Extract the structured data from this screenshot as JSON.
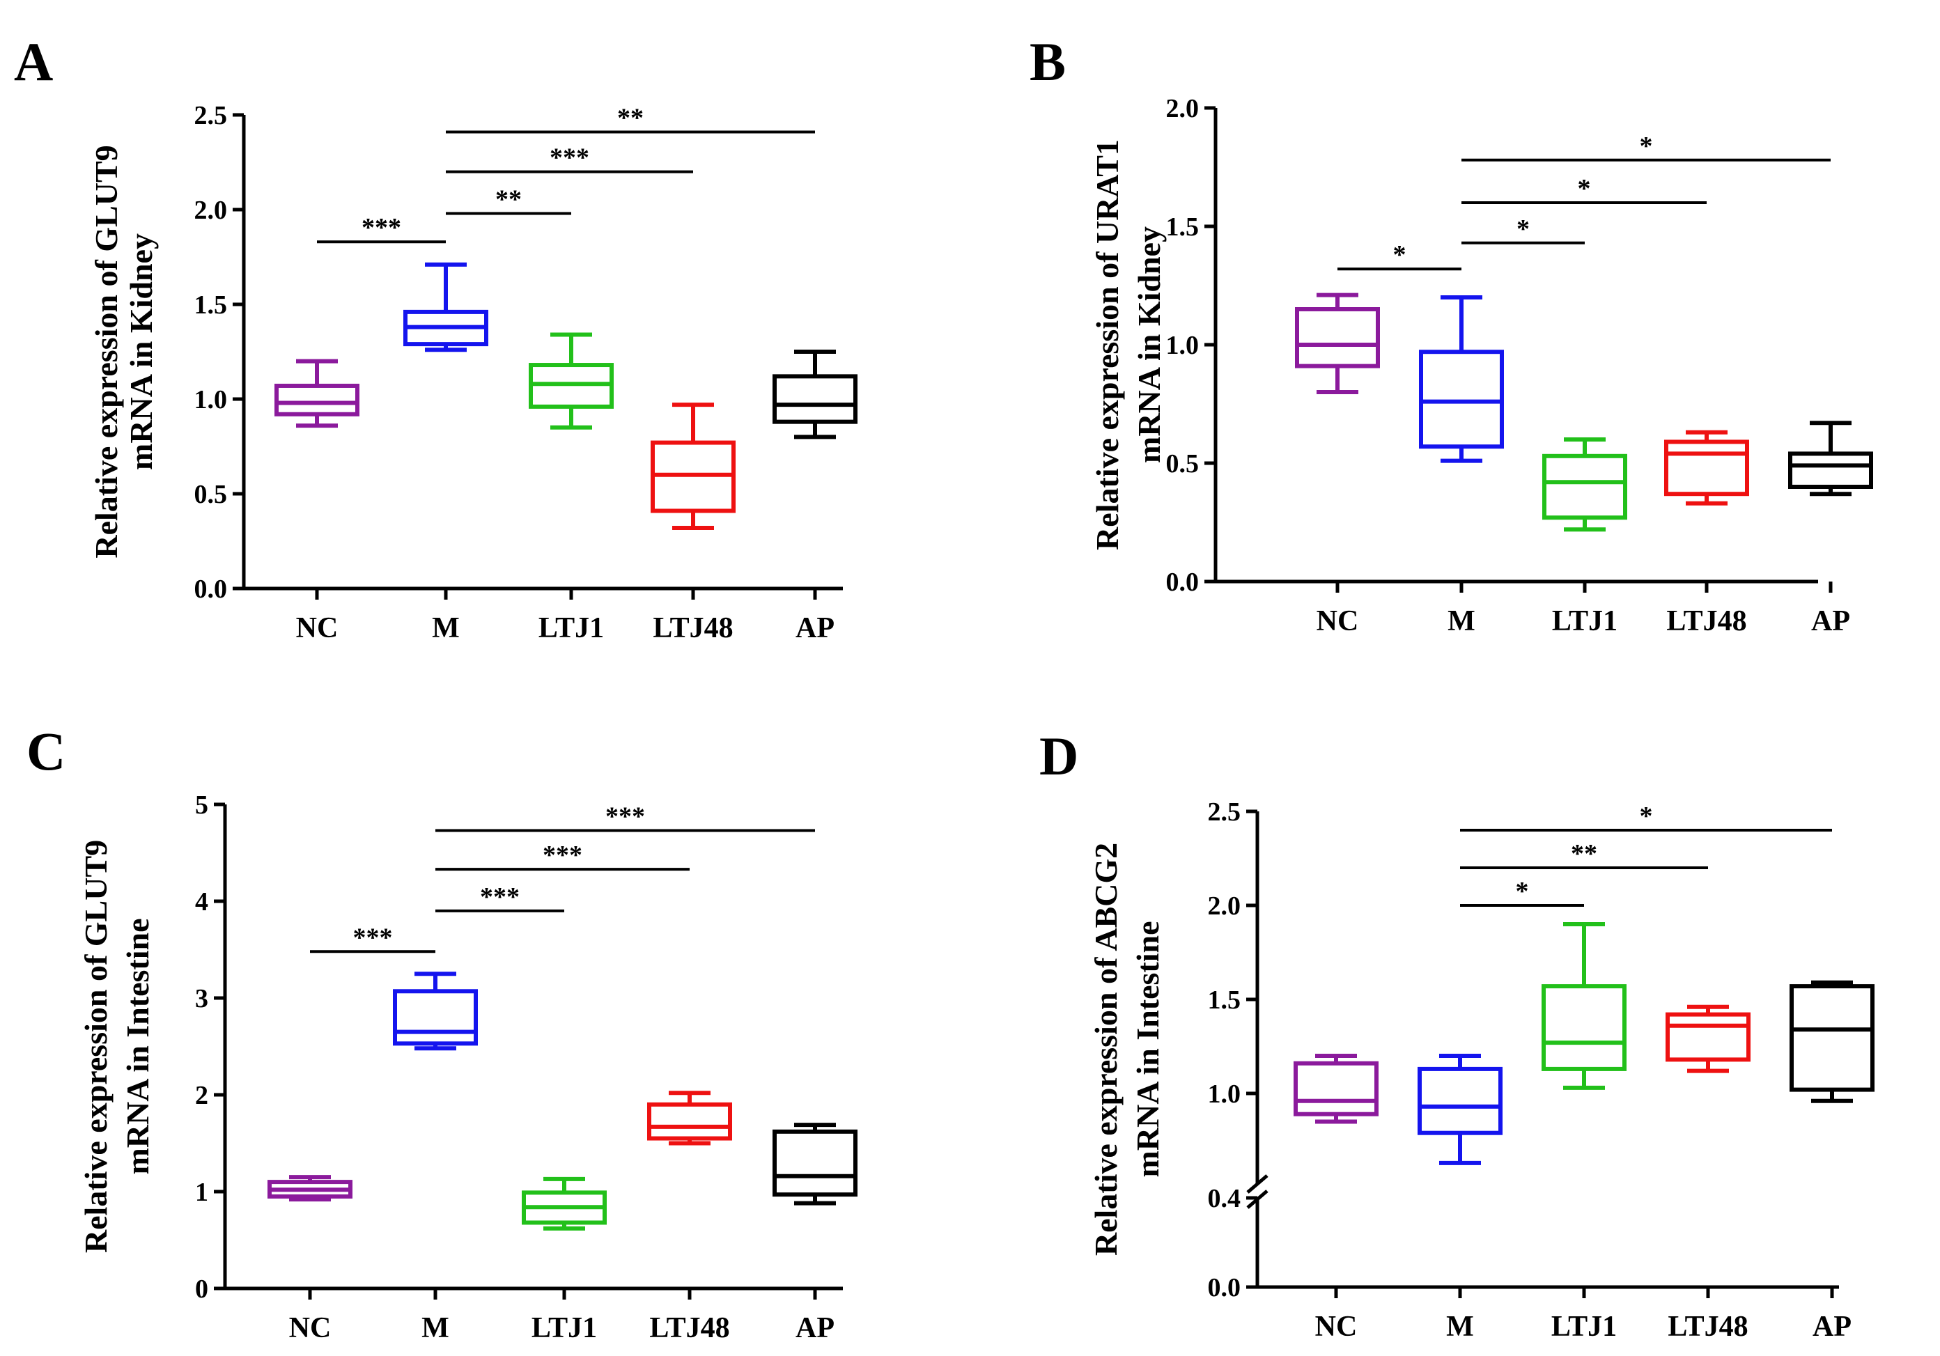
{
  "chart_data": [
    {
      "id": "A",
      "type": "box",
      "panel_label": "A",
      "ylabel_line1": "Relative expression of  GLUT9",
      "ylabel_line2": "mRNA in Kidney",
      "ylim": [
        0,
        2.5
      ],
      "yticks": [
        0,
        0.5,
        1.0,
        1.5,
        2.0,
        2.5
      ],
      "ytick_labels": [
        "0.0",
        "0.5",
        "1.0",
        "1.5",
        "2.0",
        "2.5"
      ],
      "categories": [
        "NC",
        "M",
        "LTJ1",
        "LTJ48",
        "AP"
      ],
      "boxes": [
        {
          "min": 0.86,
          "q1": 0.92,
          "median": 0.98,
          "q3": 1.07,
          "max": 1.2,
          "color": "#8b1a9c"
        },
        {
          "min": 1.26,
          "q1": 1.29,
          "median": 1.38,
          "q3": 1.46,
          "max": 1.71,
          "color": "#1414ee"
        },
        {
          "min": 0.85,
          "q1": 0.96,
          "median": 1.08,
          "q3": 1.18,
          "max": 1.34,
          "color": "#22c01a"
        },
        {
          "min": 0.32,
          "q1": 0.41,
          "median": 0.6,
          "q3": 0.77,
          "max": 0.97,
          "color": "#ee1111"
        },
        {
          "min": 0.8,
          "q1": 0.88,
          "median": 0.97,
          "q3": 1.12,
          "max": 1.25,
          "color": "#000000"
        }
      ],
      "significance": [
        {
          "from": 0,
          "to": 1,
          "label": "***",
          "y": 1.83
        },
        {
          "from": 1,
          "to": 2,
          "label": "**",
          "y": 1.98
        },
        {
          "from": 1,
          "to": 3,
          "label": "***",
          "y": 2.2
        },
        {
          "from": 1,
          "to": 4,
          "label": "**",
          "y": 2.41
        }
      ]
    },
    {
      "id": "B",
      "type": "box",
      "panel_label": "B",
      "ylabel_line1": "Relative expression of  URAT1",
      "ylabel_line2": "mRNA in Kidney",
      "ylim": [
        0,
        2.0
      ],
      "yticks": [
        0,
        0.5,
        1.0,
        1.5,
        2.0
      ],
      "ytick_labels": [
        "0.0",
        "0.5",
        "1.0",
        "1.5",
        "2.0"
      ],
      "categories": [
        "NC",
        "M",
        "LTJ1",
        "LTJ48",
        "AP"
      ],
      "boxes": [
        {
          "min": 0.8,
          "q1": 0.91,
          "median": 1.0,
          "q3": 1.15,
          "max": 1.21,
          "color": "#8b1a9c"
        },
        {
          "min": 0.51,
          "q1": 0.57,
          "median": 0.76,
          "q3": 0.97,
          "max": 1.2,
          "color": "#1414ee"
        },
        {
          "min": 0.22,
          "q1": 0.27,
          "median": 0.42,
          "q3": 0.53,
          "max": 0.6,
          "color": "#22c01a"
        },
        {
          "min": 0.33,
          "q1": 0.37,
          "median": 0.54,
          "q3": 0.59,
          "max": 0.63,
          "color": "#ee1111"
        },
        {
          "min": 0.37,
          "q1": 0.4,
          "median": 0.49,
          "q3": 0.54,
          "max": 0.67,
          "color": "#000000"
        }
      ],
      "significance": [
        {
          "from": 0,
          "to": 1,
          "label": "*",
          "y": 1.32
        },
        {
          "from": 1,
          "to": 2,
          "label": "*",
          "y": 1.43
        },
        {
          "from": 1,
          "to": 3,
          "label": "*",
          "y": 1.6
        },
        {
          "from": 1,
          "to": 4,
          "label": "*",
          "y": 1.78
        }
      ]
    },
    {
      "id": "C",
      "type": "box",
      "panel_label": "C",
      "ylabel_line1": "Relative expression of  GLUT9",
      "ylabel_line2": "mRNA in  Intestine",
      "ylim": [
        0,
        5
      ],
      "yticks": [
        0,
        1,
        2,
        3,
        4,
        5
      ],
      "ytick_labels": [
        "0",
        "1",
        "2",
        "3",
        "4",
        "5"
      ],
      "categories": [
        "NC",
        "M",
        "LTJ1",
        "LTJ48",
        "AP"
      ],
      "boxes": [
        {
          "min": 0.92,
          "q1": 0.95,
          "median": 1.02,
          "q3": 1.1,
          "max": 1.15,
          "color": "#8b1a9c"
        },
        {
          "min": 2.48,
          "q1": 2.53,
          "median": 2.65,
          "q3": 3.07,
          "max": 3.25,
          "color": "#1414ee"
        },
        {
          "min": 0.62,
          "q1": 0.68,
          "median": 0.84,
          "q3": 0.99,
          "max": 1.13,
          "color": "#22c01a"
        },
        {
          "min": 1.5,
          "q1": 1.55,
          "median": 1.67,
          "q3": 1.9,
          "max": 2.02,
          "color": "#ee1111"
        },
        {
          "min": 0.88,
          "q1": 0.97,
          "median": 1.16,
          "q3": 1.62,
          "max": 1.69,
          "color": "#000000"
        }
      ],
      "significance": [
        {
          "from": 0,
          "to": 1,
          "label": "***",
          "y": 3.48
        },
        {
          "from": 1,
          "to": 2,
          "label": "***",
          "y": 3.9
        },
        {
          "from": 1,
          "to": 3,
          "label": "***",
          "y": 4.33
        },
        {
          "from": 1,
          "to": 4,
          "label": "***",
          "y": 4.73
        }
      ]
    },
    {
      "id": "D",
      "type": "box",
      "panel_label": "D",
      "ylabel_line1": "Relative expression of  ABCG2",
      "ylabel_line2": "mRNA in  Intestine",
      "ylim": [
        0,
        2.5
      ],
      "axis_break": [
        0.4,
        0.6
      ],
      "yticks": [
        0,
        0.4,
        1.0,
        1.5,
        2.0,
        2.5
      ],
      "ytick_labels": [
        "0.0",
        "0.4",
        "1.0",
        "1.5",
        "2.0",
        "2.5"
      ],
      "categories": [
        "NC",
        "M",
        "LTJ1",
        "LTJ48",
        "AP"
      ],
      "boxes": [
        {
          "min": 0.85,
          "q1": 0.89,
          "median": 0.96,
          "q3": 1.16,
          "max": 1.2,
          "color": "#8b1a9c"
        },
        {
          "min": 0.63,
          "q1": 0.79,
          "median": 0.93,
          "q3": 1.13,
          "max": 1.2,
          "color": "#1414ee"
        },
        {
          "min": 1.03,
          "q1": 1.13,
          "median": 1.27,
          "q3": 1.57,
          "max": 1.9,
          "color": "#22c01a"
        },
        {
          "min": 1.12,
          "q1": 1.18,
          "median": 1.36,
          "q3": 1.42,
          "max": 1.46,
          "color": "#ee1111"
        },
        {
          "min": 0.96,
          "q1": 1.02,
          "median": 1.34,
          "q3": 1.57,
          "max": 1.59,
          "color": "#000000"
        }
      ],
      "significance": [
        {
          "from": 1,
          "to": 2,
          "label": "*",
          "y": 2.0
        },
        {
          "from": 1,
          "to": 3,
          "label": "**",
          "y": 2.2
        },
        {
          "from": 1,
          "to": 4,
          "label": "*",
          "y": 2.4
        }
      ]
    }
  ]
}
